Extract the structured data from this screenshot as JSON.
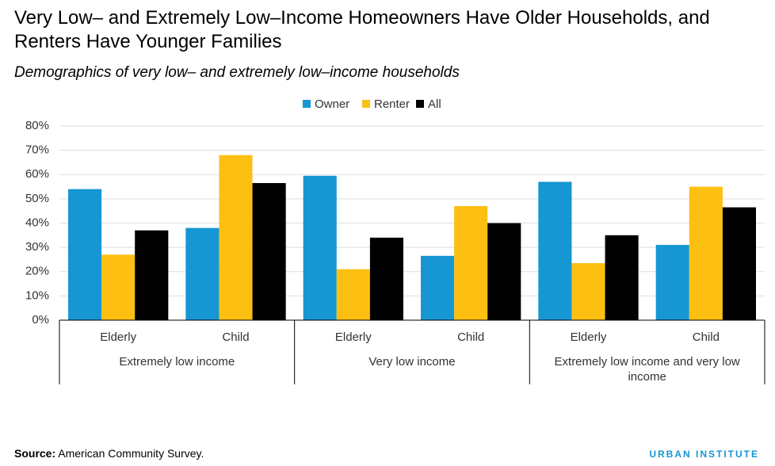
{
  "chart_data": {
    "type": "grouped_bar",
    "title": "Very Low– and Extremely Low–Income Homeowners Have Older Households, and Renters Have Younger Families",
    "subtitle": "Demographics of very low– and extremely low–income households",
    "categories": [
      "Elderly",
      "Child",
      "Elderly",
      "Child",
      "Elderly",
      "Child"
    ],
    "groups": [
      "Extremely low income",
      "Very low income",
      "Extremely low income and very low income"
    ],
    "series": [
      {
        "name": "Owner",
        "color": "#1696d2",
        "values": [
          54,
          38,
          59.5,
          26.5,
          57,
          31
        ]
      },
      {
        "name": "Renter",
        "color": "#fdbf11",
        "values": [
          27,
          68,
          21,
          47,
          23.5,
          55
        ]
      },
      {
        "name": "All",
        "color": "#000000",
        "values": [
          37,
          56.5,
          34,
          40,
          35,
          46.5
        ]
      }
    ],
    "ylim": [
      0,
      80
    ],
    "yticks": [
      {
        "value": 0,
        "label": "0%"
      },
      {
        "value": 10,
        "label": "10%"
      },
      {
        "value": 20,
        "label": "20%"
      },
      {
        "value": 30,
        "label": "30%"
      },
      {
        "value": 40,
        "label": "40%"
      },
      {
        "value": 50,
        "label": "50%"
      },
      {
        "value": 60,
        "label": "60%"
      },
      {
        "value": 70,
        "label": "70%"
      },
      {
        "value": 80,
        "label": "80%"
      }
    ],
    "grid": true,
    "legend": "top",
    "source_label": "Source:",
    "source": "American Community Survey.",
    "brand": "URBAN INSTITUTE"
  }
}
